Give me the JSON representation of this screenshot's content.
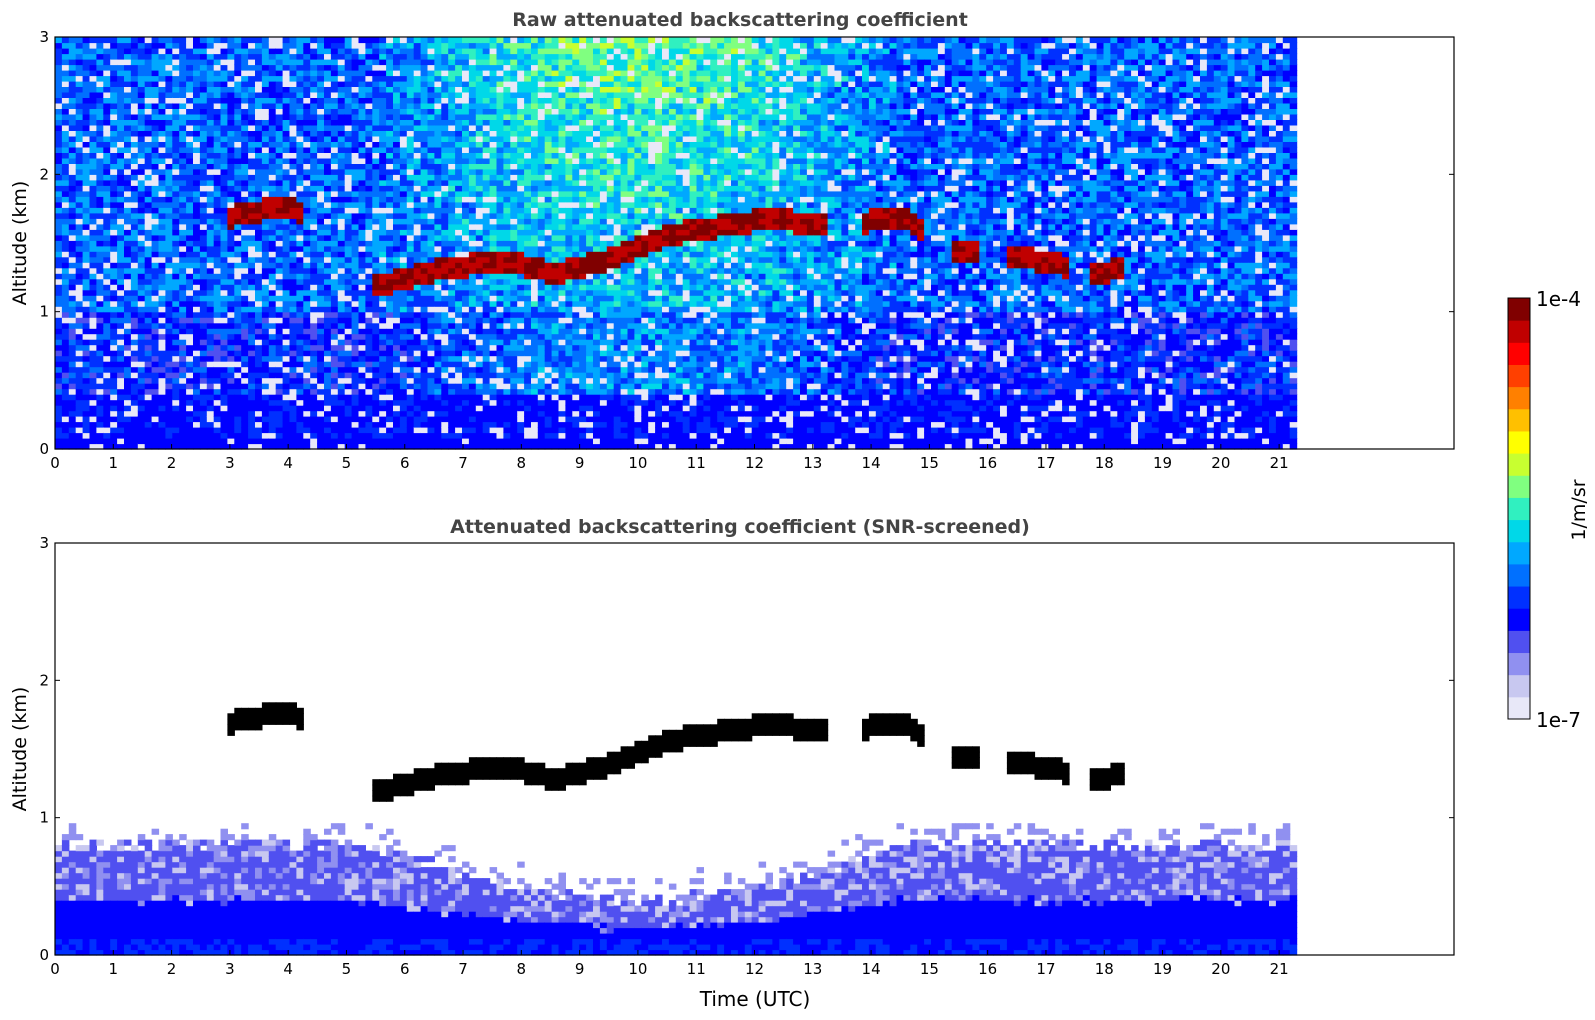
{
  "chart_data": [
    {
      "type": "heatmap",
      "title": "Raw attenuated backscattering coefficient",
      "xlabel": "",
      "ylabel": "Altitude (km)",
      "xlim": [
        0,
        24
      ],
      "ylim": [
        0,
        3
      ],
      "xticks": [
        "0",
        "1",
        "2",
        "3",
        "4",
        "5",
        "6",
        "7",
        "8",
        "9",
        "10",
        "11",
        "12",
        "13",
        "14",
        "15",
        "16",
        "17",
        "18",
        "19",
        "20",
        "21"
      ],
      "yticks": [
        "0",
        "1",
        "2",
        "3"
      ],
      "data_end_time": 21.3,
      "colorscale": "log",
      "description_values": {
        "cloud_layer": [
          {
            "t": 2.9,
            "h": 1.68
          },
          {
            "t": 3.3,
            "h": 1.72
          },
          {
            "t": 3.7,
            "h": 1.75
          },
          {
            "t": 4.1,
            "h": 1.78
          },
          {
            "t": 5.6,
            "h": 1.18
          },
          {
            "t": 6.0,
            "h": 1.25
          },
          {
            "t": 6.5,
            "h": 1.3
          },
          {
            "t": 7.0,
            "h": 1.33
          },
          {
            "t": 7.5,
            "h": 1.38
          },
          {
            "t": 8.0,
            "h": 1.35
          },
          {
            "t": 8.5,
            "h": 1.28
          },
          {
            "t": 9.0,
            "h": 1.32
          },
          {
            "t": 9.5,
            "h": 1.38
          },
          {
            "t": 10.0,
            "h": 1.48
          },
          {
            "t": 10.5,
            "h": 1.55
          },
          {
            "t": 11.0,
            "h": 1.6
          },
          {
            "t": 11.5,
            "h": 1.63
          },
          {
            "t": 12.0,
            "h": 1.66
          },
          {
            "t": 12.5,
            "h": 1.67
          },
          {
            "t": 13.0,
            "h": 1.64
          },
          {
            "t": 14.0,
            "h": 1.66
          },
          {
            "t": 14.6,
            "h": 1.67
          },
          {
            "t": 15.5,
            "h": 1.43
          },
          {
            "t": 16.5,
            "h": 1.4
          },
          {
            "t": 17.0,
            "h": 1.37
          },
          {
            "t": 17.8,
            "h": 1.28
          },
          {
            "t": 18.3,
            "h": 1.32
          }
        ]
      }
    },
    {
      "type": "heatmap",
      "title": "Attenuated backscattering coefficient (SNR-screened)",
      "xlabel": "Time (UTC)",
      "ylabel": "Altitude (km)",
      "xlim": [
        0,
        24
      ],
      "ylim": [
        0,
        3
      ],
      "xticks": [
        "0",
        "1",
        "2",
        "3",
        "4",
        "5",
        "6",
        "7",
        "8",
        "9",
        "10",
        "11",
        "12",
        "13",
        "14",
        "15",
        "16",
        "17",
        "18",
        "19",
        "20",
        "21"
      ],
      "yticks": [
        "0",
        "1",
        "2",
        "3"
      ],
      "data_end_time": 21.3,
      "colorscale": "log"
    }
  ],
  "colorbar": {
    "max_label": "1e-4",
    "min_label": "1e-7",
    "unit_label": "1/m/sr",
    "colors": [
      "#e8e8f8",
      "#c8c8f0",
      "#9090f0",
      "#5050f0",
      "#0000ff",
      "#0030ff",
      "#0070ff",
      "#00a8ff",
      "#00d8e8",
      "#30f0c0",
      "#80ff80",
      "#c8ff30",
      "#ffff00",
      "#ffc000",
      "#ff8000",
      "#ff4000",
      "#ff0000",
      "#c00000",
      "#800000"
    ]
  }
}
